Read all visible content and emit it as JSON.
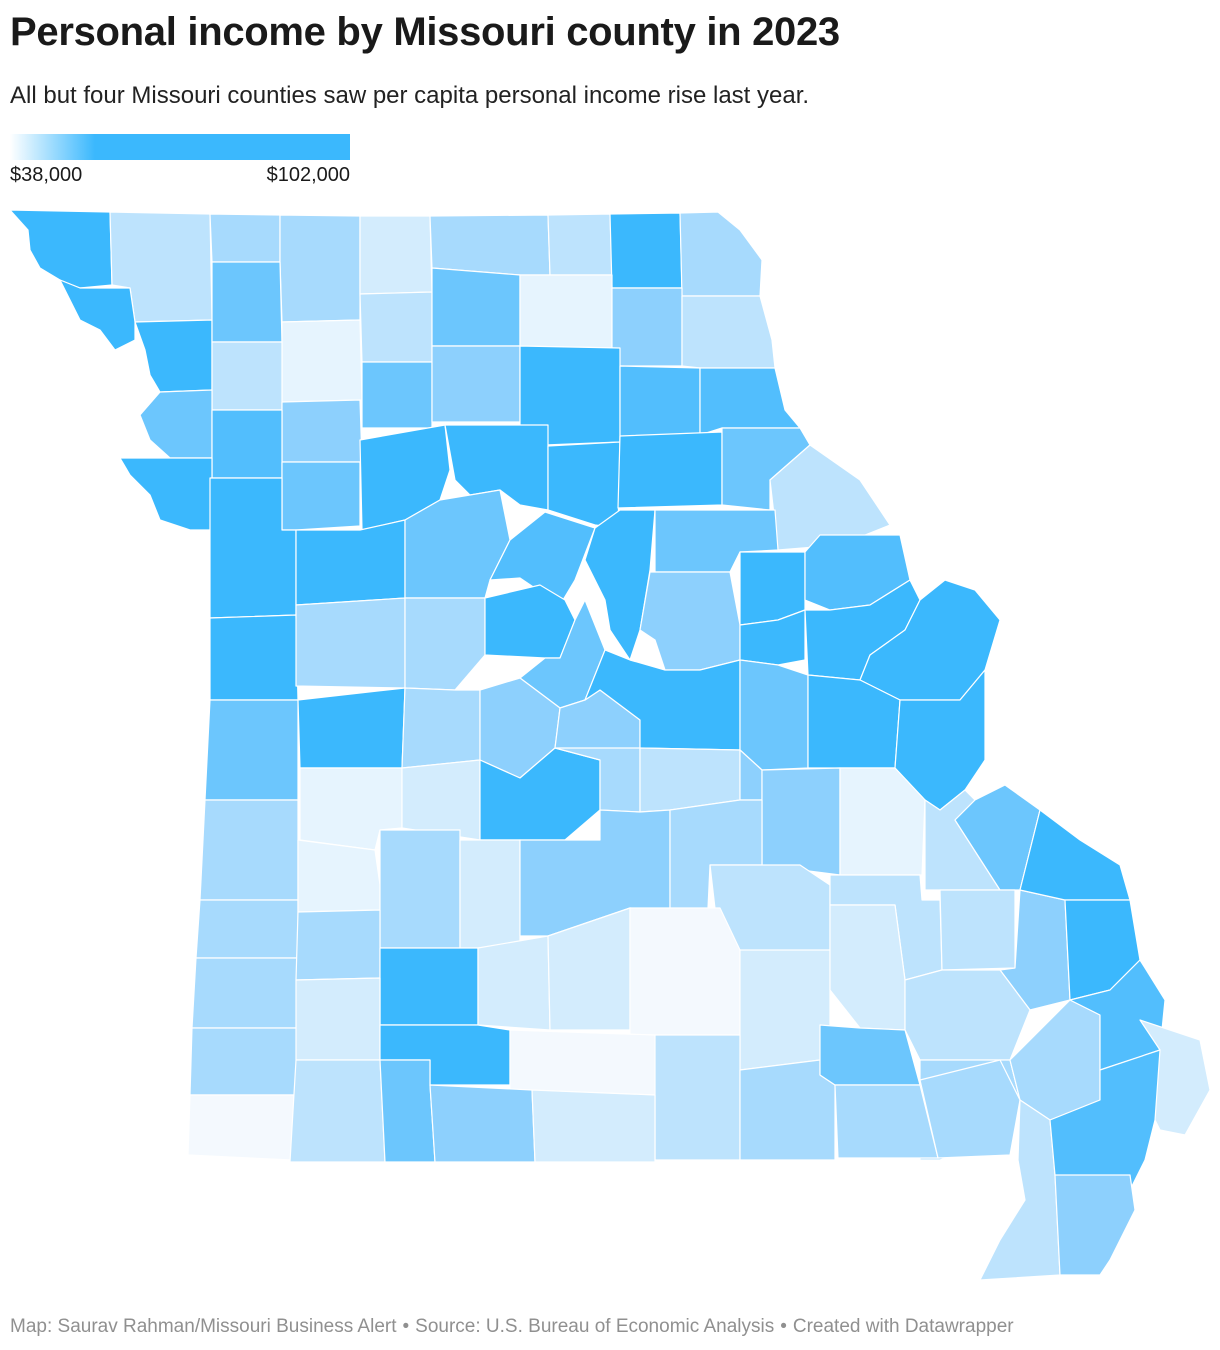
{
  "title": "Personal income by Missouri county in 2023",
  "subtitle": "All but four Missouri counties saw per capita personal income rise last year.",
  "legend": {
    "min_label": "$38,000",
    "max_label": "$102,000",
    "color_low": "#ffffff",
    "color_high": "#3bb8fd"
  },
  "footer": {
    "map_credit": "Map: Saurav Rahman/Missouri Business Alert",
    "source": "Source: U.S. Bureau of Economic Analysis",
    "created_with": "Created with Datawrapper",
    "separator": "•"
  },
  "colors": {
    "shade_1": "#3bb8fd",
    "shade_2": "#52befd",
    "shade_3": "#6cc6fd",
    "shade_4": "#8dd0fd",
    "shade_5": "#a7dafd",
    "shade_6": "#bde3fd",
    "shade_7": "#d3ecfd",
    "shade_8": "#e6f4fe",
    "shade_9": "#f4f9fe"
  }
}
